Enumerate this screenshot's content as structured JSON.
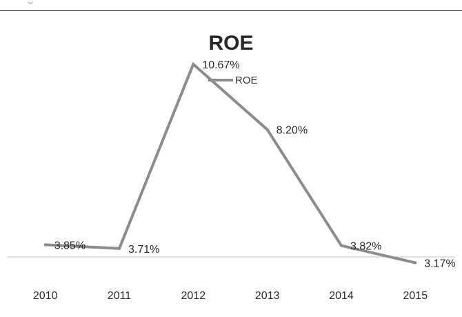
{
  "chart_data": {
    "type": "line",
    "title": "ROE",
    "xlabel": "",
    "ylabel": "",
    "categories": [
      "2010",
      "2011",
      "2012",
      "2013",
      "2014",
      "2015"
    ],
    "series": [
      {
        "name": "ROE",
        "values": [
          3.85,
          3.71,
          10.67,
          8.2,
          3.82,
          3.17
        ],
        "labels": [
          "3.85%",
          "3.71%",
          "10.67%",
          "8.20%",
          "3.82%",
          "3.17%"
        ]
      }
    ],
    "ylim": [
      0,
      12
    ],
    "grid": false,
    "legend": "top",
    "line_color": "#8c8c8c",
    "axis_color": "#bfbfbf"
  }
}
